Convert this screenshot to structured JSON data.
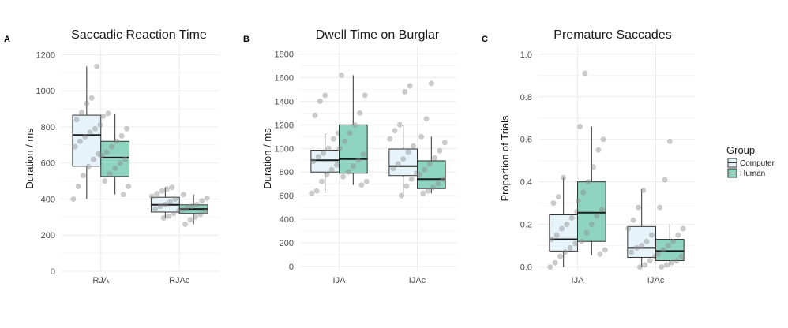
{
  "chart_data": [
    {
      "panel_label": "A",
      "type": "box",
      "title": "Saccadic Reaction Time",
      "ylabel": "Duration / ms",
      "xlabel": "",
      "ylim": [
        0,
        1250
      ],
      "yticks": [
        "0",
        "200",
        "400",
        "600",
        "800",
        "1000",
        "1200"
      ],
      "ytick_values": [
        0,
        200,
        400,
        600,
        800,
        1000,
        1200
      ],
      "categories": [
        "RJA",
        "RJAc"
      ],
      "series": [
        {
          "name": "Computer",
          "boxes": [
            {
              "min": 400,
              "q1": 582,
              "median": 755,
              "q3": 865,
              "max": 1135
            },
            {
              "min": 295,
              "q1": 328,
              "median": 368,
              "q3": 410,
              "max": 465
            }
          ],
          "points": [
            [
              400,
              470,
              530,
              580,
              620,
              650,
              690,
              720,
              745,
              770,
              790,
              810,
              840,
              880,
              930,
              960,
              1135
            ],
            [
              295,
              305,
              320,
              335,
              345,
              360,
              370,
              385,
              400,
              415,
              430,
              445,
              455,
              465
            ]
          ]
        },
        {
          "name": "Human",
          "boxes": [
            {
              "min": 425,
              "q1": 525,
              "median": 630,
              "q3": 720,
              "max": 875
            },
            {
              "min": 260,
              "q1": 320,
              "median": 345,
              "q3": 368,
              "max": 425
            }
          ],
          "points": [
            [
              425,
              470,
              500,
              540,
              570,
              600,
              620,
              640,
              660,
              690,
              720,
              750,
              790,
              860,
              875
            ],
            [
              260,
              285,
              300,
              315,
              330,
              340,
              350,
              360,
              370,
              390,
              405,
              425
            ]
          ]
        }
      ]
    },
    {
      "panel_label": "B",
      "type": "box",
      "title": "Dwell Time on Burglar",
      "ylabel": "Duration / ms",
      "xlabel": "",
      "ylim": [
        -40,
        1870
      ],
      "yticks": [
        "0",
        "200",
        "400",
        "600",
        "800",
        "1000",
        "1200",
        "1400",
        "1600",
        "1800"
      ],
      "ytick_values": [
        0,
        200,
        400,
        600,
        800,
        1000,
        1200,
        1400,
        1600,
        1800
      ],
      "categories": [
        "IJA",
        "IJAc"
      ],
      "series": [
        {
          "name": "Computer",
          "boxes": [
            {
              "min": 620,
              "q1": 800,
              "median": 900,
              "q3": 985,
              "max": 1130
            },
            {
              "min": 600,
              "q1": 770,
              "median": 850,
              "q3": 995,
              "max": 1200
            }
          ],
          "points": [
            [
              620,
              640,
              720,
              780,
              820,
              860,
              890,
              930,
              960,
              1000,
              1080,
              1130,
              1280,
              1400,
              1450
            ],
            [
              600,
              680,
              740,
              790,
              830,
              870,
              910,
              970,
              1020,
              1080,
              1150,
              1200,
              1480,
              1530
            ]
          ]
        },
        {
          "name": "Human",
          "boxes": [
            {
              "min": 690,
              "q1": 790,
              "median": 910,
              "q3": 1200,
              "max": 1620
            },
            {
              "min": 620,
              "q1": 660,
              "median": 740,
              "q3": 895,
              "max": 1100
            }
          ],
          "points": [
            [
              690,
              720,
              760,
              800,
              850,
              900,
              950,
              1000,
              1060,
              1130,
              1200,
              1300,
              1450,
              1620
            ],
            [
              620,
              640,
              670,
              700,
              740,
              780,
              820,
              870,
              920,
              980,
              1050,
              1100,
              1250,
              1550
            ]
          ]
        }
      ]
    },
    {
      "panel_label": "C",
      "type": "box",
      "title": "Premature Saccades",
      "ylabel": "Proportion of Trials",
      "xlabel": "",
      "ylim": [
        -0.02,
        1.04
      ],
      "yticks": [
        "0.0",
        "0.2",
        "0.4",
        "0.6",
        "0.8",
        "1.0"
      ],
      "ytick_values": [
        0.0,
        0.2,
        0.4,
        0.6,
        0.8,
        1.0
      ],
      "categories": [
        "IJA",
        "IJAc"
      ],
      "series": [
        {
          "name": "Computer",
          "boxes": [
            {
              "min": 0.0,
              "q1": 0.075,
              "median": 0.13,
              "q3": 0.245,
              "max": 0.42
            },
            {
              "min": 0.0,
              "q1": 0.045,
              "median": 0.09,
              "q3": 0.19,
              "max": 0.365
            }
          ],
          "points": [
            [
              0.0,
              0.02,
              0.05,
              0.07,
              0.09,
              0.11,
              0.13,
              0.15,
              0.18,
              0.2,
              0.23,
              0.26,
              0.3,
              0.33,
              0.42
            ],
            [
              0.0,
              0.01,
              0.03,
              0.05,
              0.07,
              0.09,
              0.1,
              0.12,
              0.15,
              0.18,
              0.22,
              0.28,
              0.36
            ]
          ]
        },
        {
          "name": "Human",
          "boxes": [
            {
              "min": 0.055,
              "q1": 0.12,
              "median": 0.255,
              "q3": 0.4,
              "max": 0.66
            },
            {
              "min": 0.0,
              "q1": 0.03,
              "median": 0.075,
              "q3": 0.13,
              "max": 0.2
            }
          ],
          "points": [
            [
              0.06,
              0.08,
              0.12,
              0.16,
              0.2,
              0.24,
              0.27,
              0.31,
              0.35,
              0.4,
              0.47,
              0.55,
              0.6,
              0.66,
              0.91
            ],
            [
              0.0,
              0.01,
              0.02,
              0.03,
              0.05,
              0.06,
              0.08,
              0.1,
              0.12,
              0.15,
              0.18,
              0.28,
              0.41,
              0.59
            ]
          ]
        }
      ]
    }
  ],
  "legend": {
    "title": "Group",
    "items": [
      {
        "label": "Computer",
        "color": "#e6f4fa"
      },
      {
        "label": "Human",
        "color": "#8fd4be"
      }
    ]
  },
  "style": {
    "computer_fill": "#e6f4fa",
    "human_fill": "#8fd4be",
    "box_stroke": "#333333",
    "point_color": "#8c8c8c"
  }
}
